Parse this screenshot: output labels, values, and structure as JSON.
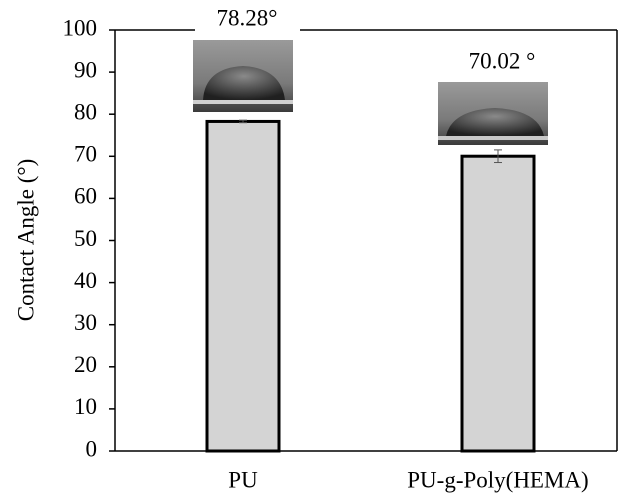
{
  "chart_data": {
    "type": "bar",
    "y_label": "Contact Angle (°)",
    "categories": [
      "PU",
      "PU-g-Poly(HEMA)"
    ],
    "values": [
      78.28,
      70.02
    ],
    "value_labels": [
      "78.28°",
      "70.02 °"
    ],
    "errors": [
      0.3,
      1.5
    ],
    "color": "#d4d4d4",
    "ylim": [
      0,
      100
    ],
    "yticks": [
      0,
      10,
      20,
      30,
      40,
      50,
      60,
      70,
      80,
      90,
      100
    ],
    "grid": false
  }
}
